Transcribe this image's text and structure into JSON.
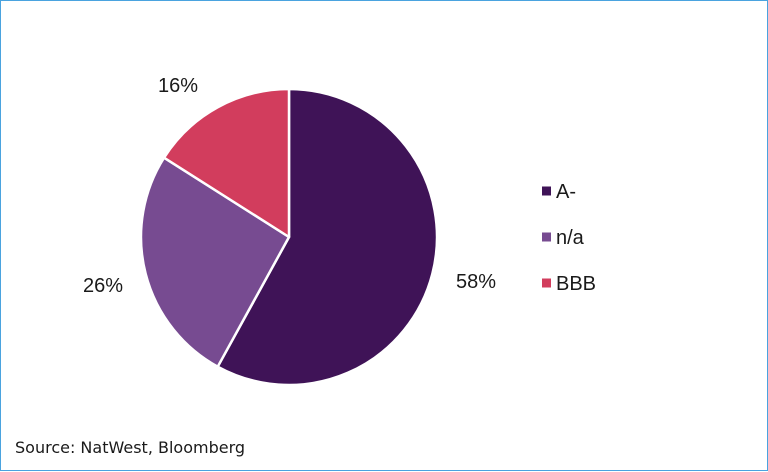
{
  "chart_data": {
    "type": "pie",
    "slices": [
      {
        "label": "A-",
        "value": 58,
        "display": "58%",
        "color": "#3f1357"
      },
      {
        "label": "n/a",
        "value": 26,
        "display": "26%",
        "color": "#774b91"
      },
      {
        "label": "BBB",
        "value": 16,
        "display": "16%",
        "color": "#d23d5d"
      }
    ],
    "legend": [
      "A-",
      "n/a",
      "BBB"
    ],
    "legend_position": "right",
    "start": "12 o'clock",
    "direction": "clockwise"
  },
  "source": "Source: NatWest, Bloomberg"
}
